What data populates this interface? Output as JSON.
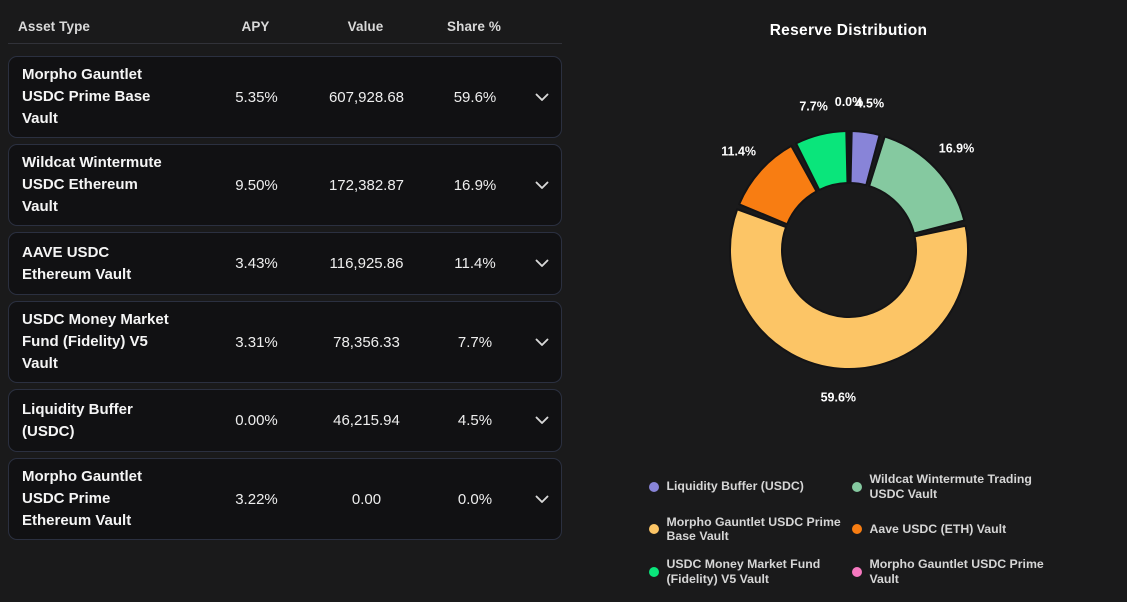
{
  "table": {
    "headers": [
      "Asset Type",
      "APY",
      "Value",
      "Share %"
    ],
    "rows": [
      {
        "asset": "Morpho Gauntlet USDC Prime Base Vault",
        "apy": "5.35%",
        "value": "607,928.68",
        "share": "59.6%"
      },
      {
        "asset": "Wildcat Wintermute USDC Ethereum Vault",
        "apy": "9.50%",
        "value": "172,382.87",
        "share": "16.9%"
      },
      {
        "asset": "AAVE USDC Ethereum Vault",
        "apy": "3.43%",
        "value": "116,925.86",
        "share": "11.4%"
      },
      {
        "asset": "USDC Money Market Fund (Fidelity) V5 Vault",
        "apy": "3.31%",
        "value": "78,356.33",
        "share": "7.7%"
      },
      {
        "asset": "Liquidity Buffer (USDC)",
        "apy": "0.00%",
        "value": "46,215.94",
        "share": "4.5%"
      },
      {
        "asset": "Morpho Gauntlet USDC Prime Ethereum Vault",
        "apy": "3.22%",
        "value": "0.00",
        "share": "0.0%"
      }
    ]
  },
  "chart_data": {
    "type": "pie",
    "subtype": "donut",
    "title": "Reserve Distribution",
    "unit": "%",
    "legend_position": "bottom",
    "series": [
      {
        "name": "Liquidity Buffer (USDC)",
        "value": 4.5,
        "label": "4.5%",
        "color": "#8884d8"
      },
      {
        "name": "Wildcat Wintermute Trading USDC Vault",
        "value": 16.9,
        "label": "16.9%",
        "color": "#85c9a0"
      },
      {
        "name": "Morpho Gauntlet USDC Prime Base Vault",
        "value": 59.6,
        "label": "59.6%",
        "color": "#fcc566"
      },
      {
        "name": "Aave USDC (ETH) Vault",
        "value": 11.4,
        "label": "11.4%",
        "color": "#f87d12"
      },
      {
        "name": "USDC Money Market Fund (Fidelity) V5 Vault",
        "value": 7.7,
        "label": "7.7%",
        "color": "#0ae57b"
      },
      {
        "name": "Morpho Gauntlet USDC Prime Vault",
        "value": 0.0,
        "label": "0.0%",
        "color": "#f678c0"
      }
    ]
  },
  "colors": {
    "background": "#1a1a1b",
    "card_background": "#111113",
    "card_border": "#2b3040",
    "slice_gap_stroke": "#141416"
  }
}
